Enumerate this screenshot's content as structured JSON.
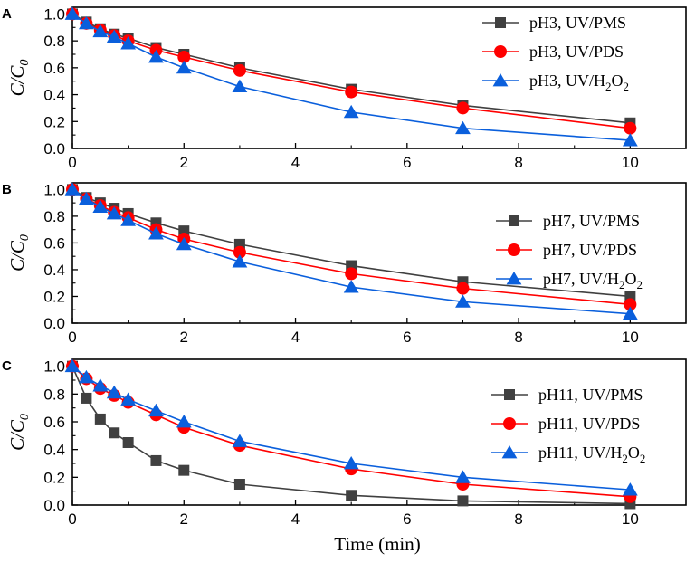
{
  "chart_data": [
    {
      "type": "line",
      "panel_label": "A",
      "xlabel": "",
      "ylabel": {
        "main": "C/C",
        "sub": "0"
      },
      "xlim": [
        0,
        11
      ],
      "ylim": [
        0,
        1.05
      ],
      "xticks": [
        0,
        2,
        4,
        6,
        8,
        10
      ],
      "yticks": [
        0.0,
        0.2,
        0.4,
        0.6,
        0.8,
        1.0
      ],
      "legend_position": "top-right",
      "x": [
        0,
        0.25,
        0.5,
        0.75,
        1,
        1.5,
        2,
        3,
        5,
        7,
        10
      ],
      "series": [
        {
          "name": "pH3, UV/PMS",
          "legend": {
            "main": "pH3, UV/PMS"
          },
          "marker": "square",
          "color": "#404040",
          "values": [
            1.0,
            0.94,
            0.89,
            0.85,
            0.82,
            0.75,
            0.7,
            0.6,
            0.44,
            0.32,
            0.19
          ]
        },
        {
          "name": "pH3, UV/PDS",
          "legend": {
            "main": "pH3, UV/PDS"
          },
          "marker": "circle",
          "color": "#ff0000",
          "values": [
            1.0,
            0.93,
            0.88,
            0.84,
            0.8,
            0.73,
            0.68,
            0.58,
            0.42,
            0.3,
            0.15
          ]
        },
        {
          "name": "pH3, UV/H2O2",
          "legend": {
            "main": "pH3, UV/H",
            "sub1": "2",
            "mid": "O",
            "sub2": "2"
          },
          "marker": "triangle",
          "color": "#0a5fdc",
          "values": [
            1.0,
            0.93,
            0.87,
            0.83,
            0.78,
            0.68,
            0.6,
            0.46,
            0.27,
            0.15,
            0.06
          ]
        }
      ]
    },
    {
      "type": "line",
      "panel_label": "B",
      "xlabel": "",
      "ylabel": {
        "main": "C/C",
        "sub": "0"
      },
      "xlim": [
        0,
        11
      ],
      "ylim": [
        0,
        1.05
      ],
      "xticks": [
        0,
        2,
        4,
        6,
        8,
        10
      ],
      "yticks": [
        0.0,
        0.2,
        0.4,
        0.6,
        0.8,
        1.0
      ],
      "legend_position": "center-right",
      "x": [
        0,
        0.25,
        0.5,
        0.75,
        1,
        1.5,
        2,
        3,
        5,
        7,
        10
      ],
      "series": [
        {
          "name": "pH7, UV/PMS",
          "legend": {
            "main": "pH7, UV/PMS"
          },
          "marker": "square",
          "color": "#404040",
          "values": [
            1.0,
            0.94,
            0.9,
            0.86,
            0.82,
            0.75,
            0.69,
            0.59,
            0.43,
            0.31,
            0.2
          ]
        },
        {
          "name": "pH7, UV/PDS",
          "legend": {
            "main": "pH7, UV/PDS"
          },
          "marker": "circle",
          "color": "#ff0000",
          "values": [
            1.0,
            0.93,
            0.88,
            0.83,
            0.79,
            0.7,
            0.63,
            0.53,
            0.37,
            0.26,
            0.14
          ]
        },
        {
          "name": "pH7, UV/H2O2",
          "legend": {
            "main": "pH7, UV/H",
            "sub1": "2",
            "mid": "O",
            "sub2": "2"
          },
          "marker": "triangle",
          "color": "#0a5fdc",
          "values": [
            1.0,
            0.93,
            0.87,
            0.82,
            0.77,
            0.67,
            0.59,
            0.46,
            0.27,
            0.16,
            0.07
          ]
        }
      ]
    },
    {
      "type": "line",
      "panel_label": "C",
      "xlabel": "Time (min)",
      "ylabel": {
        "main": "C/C",
        "sub": "0"
      },
      "xlim": [
        0,
        11
      ],
      "ylim": [
        0,
        1.05
      ],
      "xticks": [
        0,
        2,
        4,
        6,
        8,
        10
      ],
      "yticks": [
        0.0,
        0.2,
        0.4,
        0.6,
        0.8,
        1.0
      ],
      "legend_position": "center-right",
      "x": [
        0,
        0.25,
        0.5,
        0.75,
        1,
        1.5,
        2,
        3,
        5,
        7,
        10
      ],
      "series": [
        {
          "name": "pH11, UV/PMS",
          "legend": {
            "main": "pH11, UV/PMS"
          },
          "marker": "square",
          "color": "#404040",
          "values": [
            1.0,
            0.77,
            0.62,
            0.52,
            0.45,
            0.32,
            0.25,
            0.15,
            0.07,
            0.03,
            0.01
          ]
        },
        {
          "name": "pH11, UV/PDS",
          "legend": {
            "main": "pH11, UV/PDS"
          },
          "marker": "circle",
          "color": "#ff0000",
          "values": [
            1.0,
            0.91,
            0.84,
            0.79,
            0.74,
            0.65,
            0.56,
            0.43,
            0.26,
            0.15,
            0.06
          ]
        },
        {
          "name": "pH11, UV/H2O2",
          "legend": {
            "main": "pH11, UV/H",
            "sub1": "2",
            "mid": "O",
            "sub2": "2"
          },
          "marker": "triangle",
          "color": "#0a5fdc",
          "values": [
            1.0,
            0.92,
            0.86,
            0.81,
            0.76,
            0.68,
            0.6,
            0.46,
            0.3,
            0.2,
            0.11
          ]
        }
      ]
    }
  ]
}
